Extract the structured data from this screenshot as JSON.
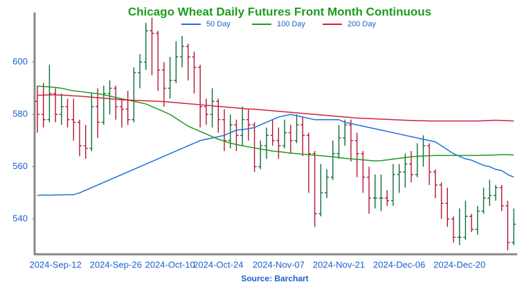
{
  "chart_data": {
    "type": "ohlc",
    "title": "Chicago Wheat Daily Futures Front Month Continuous",
    "source": "Source: Barchart",
    "categories": [
      null,
      null,
      null,
      "2024-Sep-12",
      null,
      null,
      null,
      null,
      null,
      null,
      null,
      null,
      null,
      "2024-Sep-26",
      null,
      null,
      null,
      null,
      null,
      null,
      null,
      null,
      "2024-Oct-10",
      null,
      null,
      null,
      null,
      null,
      null,
      null,
      "2024-Oct-24",
      null,
      null,
      null,
      null,
      null,
      null,
      null,
      null,
      null,
      "2024-Nov-07",
      null,
      null,
      null,
      null,
      null,
      null,
      null,
      null,
      null,
      "2024-Nov-21",
      null,
      null,
      null,
      null,
      null,
      null,
      null,
      null,
      null,
      "2024-Dec-06",
      null,
      null,
      null,
      null,
      null,
      null,
      null,
      null,
      null,
      "2024-Dec-20",
      null,
      null,
      null,
      null,
      null,
      null,
      null,
      null,
      null
    ],
    "ohlc": {
      "open": [
        585,
        580,
        578,
        588,
        580,
        583,
        578,
        577,
        568,
        567,
        583,
        577,
        588,
        590,
        583,
        582,
        578,
        596,
        600,
        612,
        611,
        597,
        590,
        593,
        602,
        606,
        602,
        598,
        583,
        580,
        585,
        578,
        570,
        576,
        572,
        578,
        576,
        560,
        568,
        572,
        570,
        568,
        573,
        570,
        576,
        572,
        565,
        542,
        550,
        556,
        565,
        571,
        576,
        570,
        565,
        556,
        548,
        548,
        548,
        547,
        557,
        558,
        561,
        557,
        564,
        568,
        558,
        553,
        546,
        540,
        533,
        533,
        541,
        536,
        543,
        548,
        549,
        552,
        545,
        531
      ],
      "high": [
        591,
        592,
        599,
        590,
        588,
        586,
        586,
        578,
        576,
        588,
        590,
        591,
        593,
        591,
        586,
        589,
        598,
        603,
        615,
        617,
        612,
        600,
        602,
        608,
        610,
        607,
        604,
        599,
        586,
        590,
        586,
        582,
        580,
        578,
        583,
        582,
        577,
        570,
        575,
        578,
        575,
        578,
        576,
        580,
        579,
        573,
        566,
        561,
        559,
        570,
        576,
        578,
        578,
        573,
        566,
        560,
        557,
        557,
        551,
        561,
        561,
        565,
        566,
        569,
        572,
        569,
        559,
        554,
        552,
        541,
        544,
        547,
        542,
        545,
        552,
        555,
        553,
        553,
        547,
        544
      ],
      "low": [
        573,
        575,
        577,
        577,
        576,
        575,
        570,
        564,
        563,
        566,
        571,
        576,
        580,
        578,
        575,
        576,
        577,
        590,
        597,
        595,
        589,
        583,
        586,
        592,
        598,
        593,
        588,
        575,
        576,
        575,
        573,
        566,
        567,
        566,
        568,
        570,
        558,
        559,
        563,
        568,
        563,
        567,
        565,
        569,
        564,
        550,
        537,
        541,
        548,
        555,
        563,
        568,
        562,
        556,
        550,
        542,
        544,
        543,
        545,
        545,
        550,
        552,
        554,
        556,
        560,
        553,
        548,
        540,
        537,
        531,
        530,
        532,
        535,
        534,
        542,
        545,
        547,
        543,
        528,
        530
      ],
      "close": [
        580,
        578,
        588,
        580,
        583,
        578,
        577,
        568,
        567,
        583,
        577,
        588,
        590,
        583,
        582,
        578,
        596,
        600,
        612,
        611,
        597,
        590,
        593,
        602,
        606,
        602,
        598,
        583,
        580,
        585,
        578,
        570,
        576,
        572,
        578,
        576,
        560,
        568,
        572,
        570,
        568,
        573,
        570,
        576,
        572,
        565,
        542,
        550,
        556,
        565,
        571,
        576,
        570,
        565,
        556,
        548,
        548,
        548,
        547,
        557,
        558,
        561,
        557,
        564,
        568,
        558,
        553,
        546,
        540,
        533,
        533,
        541,
        536,
        543,
        548,
        549,
        552,
        545,
        531,
        538
      ]
    },
    "up_color": "#0b6b3a",
    "down_color": "#b3142f",
    "series": [
      {
        "name": "50 Day",
        "color": "#1f6fd6",
        "values": [
          549,
          549.2,
          549.1,
          549.2,
          549.2,
          549.3,
          549.3,
          550,
          551,
          552,
          553,
          554,
          555,
          556,
          557,
          558,
          559,
          560,
          561,
          562,
          563,
          564,
          565,
          566,
          567,
          568,
          569,
          570,
          570.5,
          571,
          571.5,
          572,
          573,
          574,
          574.2,
          574.5,
          575,
          576,
          577,
          578,
          579,
          579.5,
          580,
          579.5,
          579,
          578.5,
          578,
          578,
          578,
          578,
          578,
          577,
          576.5,
          576,
          575.5,
          575,
          574.5,
          574,
          573.5,
          573,
          572.5,
          572,
          571.5,
          571,
          570.5,
          570,
          569.5,
          568,
          566.5,
          565,
          564,
          563,
          562.5,
          561.5,
          560.5,
          560,
          559,
          558.5,
          557,
          556
        ]
      },
      {
        "name": "100 Day",
        "color": "#1e9a1e",
        "values": [
          590.8,
          590.7,
          590.5,
          590.3,
          590,
          589.5,
          589,
          588.8,
          588.5,
          588.2,
          588,
          587.5,
          587,
          586.5,
          586,
          585.5,
          585,
          584.5,
          584,
          583,
          582,
          581,
          580,
          578.5,
          577,
          575.5,
          574.5,
          573.5,
          572.5,
          571.5,
          570.5,
          569.8,
          569,
          568.5,
          568,
          567.6,
          567.2,
          566.8,
          566.4,
          566,
          565.8,
          565.5,
          565.2,
          565,
          564.8,
          564.6,
          564.4,
          564.2,
          564,
          563.8,
          563.5,
          563.2,
          563,
          562.8,
          562.6,
          562.4,
          562.2,
          562.3,
          562.6,
          562.9,
          563.2,
          563.5,
          563.8,
          564,
          564.1,
          564.2,
          564.3,
          564.3,
          564.3,
          564.3,
          564.3,
          564.3,
          564.3,
          564.3,
          564.4,
          564.4,
          564.5,
          564.6,
          564.6,
          564.5
        ]
      },
      {
        "name": "200 Day",
        "color": "#d0213b",
        "values": [
          587.3,
          587.4,
          587.5,
          587.5,
          587.4,
          587.3,
          587.1,
          587,
          586.8,
          586.6,
          586.4,
          586.2,
          586,
          585.8,
          585.6,
          585.5,
          585.4,
          585.3,
          585.2,
          585.1,
          585,
          584.9,
          584.7,
          584.5,
          584.3,
          584.1,
          583.9,
          583.7,
          583.5,
          583.3,
          583.1,
          582.9,
          582.7,
          582.5,
          582.3,
          582.1,
          582,
          581.8,
          581.6,
          581.4,
          581.2,
          581,
          580.8,
          580.6,
          580.4,
          580.2,
          580,
          579.8,
          579.6,
          579.4,
          579.2,
          579,
          578.8,
          578.6,
          578.5,
          578.4,
          578.3,
          578.2,
          578.1,
          578,
          577.9,
          577.8,
          577.7,
          577.6,
          577.6,
          577.5,
          577.5,
          577.5,
          577.5,
          577.5,
          577.5,
          577.5,
          577.5,
          577.5,
          577.6,
          577.7,
          577.8,
          577.7,
          577.6,
          577.5
        ]
      }
    ],
    "ylim": [
      526.5,
      619
    ],
    "yticks": [
      540,
      560,
      580,
      600
    ],
    "grid": false,
    "legend": "top"
  }
}
